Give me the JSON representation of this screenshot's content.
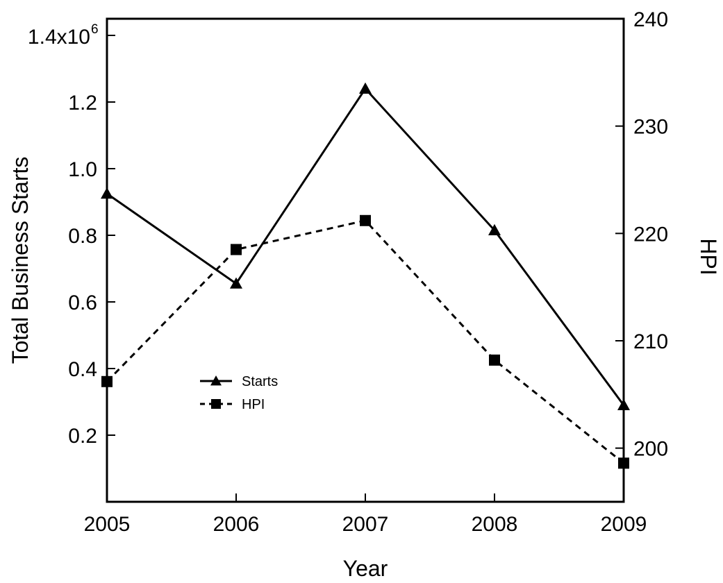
{
  "chart_data": {
    "type": "line",
    "x": [
      2005,
      2006,
      2007,
      2008,
      2009
    ],
    "xlabel": "Year",
    "x_tick_labels": [
      "2005",
      "2006",
      "2007",
      "2008",
      "2009"
    ],
    "y_left": {
      "label": "Total Business Starts",
      "ylim": [
        0.0,
        1.45
      ],
      "scale_label": "1.4x10",
      "scale_exponent": "6",
      "ticks": [
        0.2,
        0.4,
        0.6,
        0.8,
        1.0,
        1.2
      ],
      "tick_labels": [
        "0.2",
        "0.4",
        "0.6",
        "0.8",
        "1.0",
        "1.2"
      ]
    },
    "y_right": {
      "label": "HPI",
      "ylim": [
        195,
        240
      ],
      "ticks": [
        200,
        210,
        220,
        230,
        240
      ],
      "tick_labels": [
        "200",
        "210",
        "220",
        "230",
        "240"
      ]
    },
    "series": [
      {
        "name": "Starts",
        "axis": "left",
        "marker": "triangle",
        "line": "solid",
        "values": [
          0.925,
          0.655,
          1.24,
          0.815,
          0.29
        ]
      },
      {
        "name": "HPI",
        "axis": "right",
        "marker": "square",
        "line": "dashed",
        "values": [
          206.2,
          218.5,
          221.2,
          208.2,
          198.6
        ]
      }
    ],
    "legend": {
      "position": "center-left",
      "entries": [
        "Starts",
        "HPI"
      ]
    },
    "grid": false
  }
}
